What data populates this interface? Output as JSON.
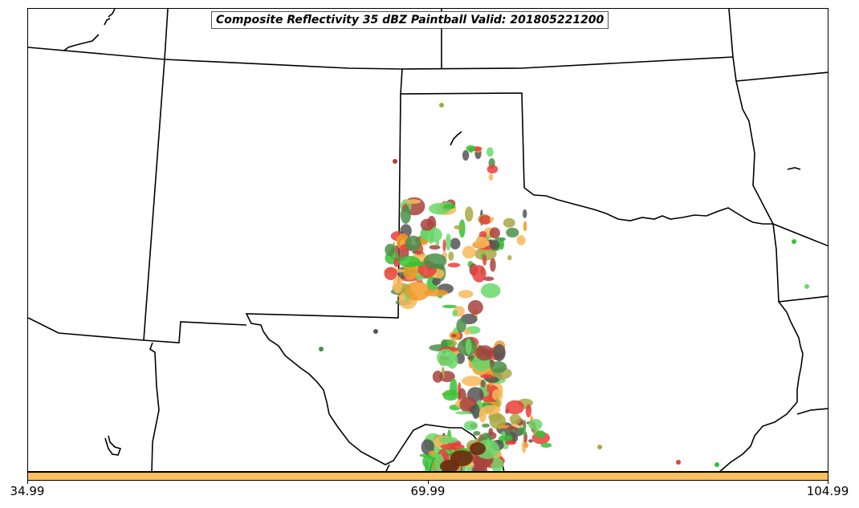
{
  "map": {
    "title": "Composite Reflectivity 35 dBZ Paintball Valid: 201805221200",
    "colors": {
      "background": "#ffffff",
      "boundary": "#000000",
      "paintball_red": "#e8403a",
      "paintball_darkred": "#a8423c",
      "paintball_orange": "#f29a2a",
      "paintball_lightorange": "#f8b85a",
      "paintball_green": "#35c235",
      "paintball_lightgreen": "#6bd86b",
      "paintball_darkgreen": "#4a8f4a",
      "paintball_olive": "#a8a845",
      "paintball_gray": "#555555",
      "paintball_brown": "#6b2a10"
    }
  },
  "colorbar": {
    "color": "#fcc060",
    "tick_labels": [
      "34.99",
      "69.99",
      "104.99"
    ]
  }
}
